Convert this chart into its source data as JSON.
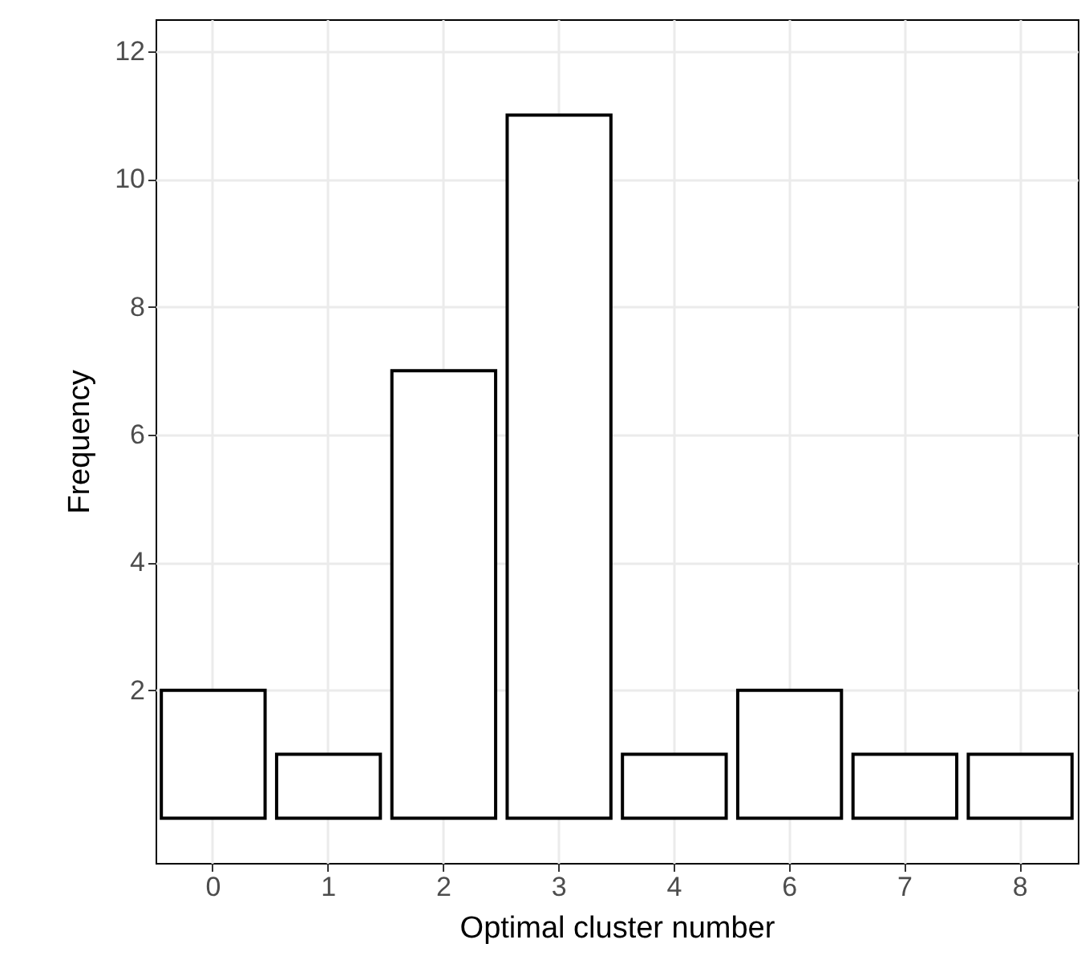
{
  "chart_data": {
    "type": "bar",
    "xlabel": "Optimal cluster number",
    "ylabel": "Frequency",
    "categories": [
      "0",
      "1",
      "2",
      "3",
      "4",
      "6",
      "7",
      "8"
    ],
    "values": [
      2,
      1,
      7,
      11,
      1,
      2,
      1,
      1
    ],
    "color": "#ffffff",
    "ylim": [
      -0.7,
      12.5
    ],
    "yticks": [
      2,
      4,
      6,
      8,
      10,
      12
    ],
    "grid": true
  }
}
